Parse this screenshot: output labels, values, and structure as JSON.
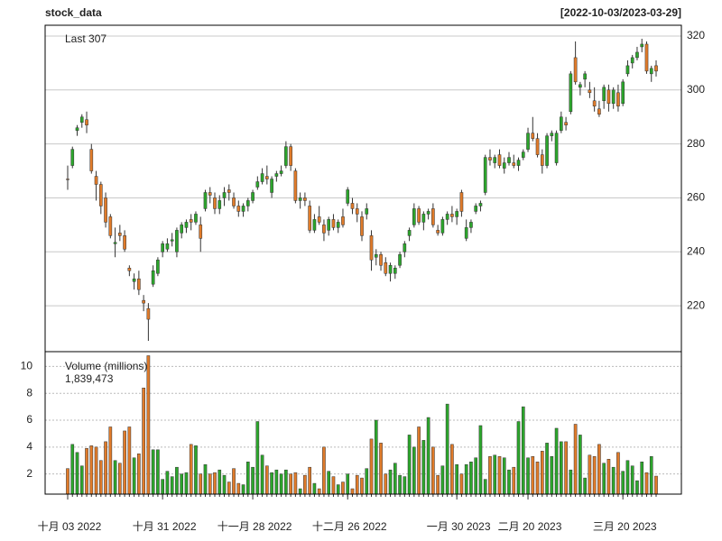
{
  "chart_data": {
    "type": "candlestick",
    "title": "stock_data",
    "range_label": "[2022-10-03/2023-03-29]",
    "last_label": "Last 307",
    "volume_label": "Volume (millions)",
    "volume_last_label": "1,839,473",
    "up_color": "#2ca62c",
    "down_color": "#e07b2a",
    "grid": true,
    "x": [
      "2022-10-03",
      "2022-10-04",
      "2022-10-05",
      "2022-10-06",
      "2022-10-07",
      "2022-10-10",
      "2022-10-11",
      "2022-10-12",
      "2022-10-13",
      "2022-10-14",
      "2022-10-17",
      "2022-10-18",
      "2022-10-19",
      "2022-10-20",
      "2022-10-21",
      "2022-10-24",
      "2022-10-25",
      "2022-10-26",
      "2022-10-27",
      "2022-10-28",
      "2022-10-31",
      "2022-11-01",
      "2022-11-02",
      "2022-11-03",
      "2022-11-04",
      "2022-11-07",
      "2022-11-08",
      "2022-11-09",
      "2022-11-10",
      "2022-11-11",
      "2022-11-14",
      "2022-11-15",
      "2022-11-16",
      "2022-11-17",
      "2022-11-18",
      "2022-11-21",
      "2022-11-22",
      "2022-11-23",
      "2022-11-25",
      "2022-11-28",
      "2022-11-29",
      "2022-11-30",
      "2022-12-01",
      "2022-12-02",
      "2022-12-05",
      "2022-12-06",
      "2022-12-07",
      "2022-12-08",
      "2022-12-09",
      "2022-12-12",
      "2022-12-13",
      "2022-12-14",
      "2022-12-15",
      "2022-12-16",
      "2022-12-19",
      "2022-12-20",
      "2022-12-21",
      "2022-12-22",
      "2022-12-23",
      "2022-12-26",
      "2022-12-27",
      "2022-12-28",
      "2022-12-29",
      "2022-12-30",
      "2023-01-03",
      "2023-01-04",
      "2023-01-05",
      "2023-01-06",
      "2023-01-09",
      "2023-01-10",
      "2023-01-11",
      "2023-01-12",
      "2023-01-13",
      "2023-01-17",
      "2023-01-18",
      "2023-01-19",
      "2023-01-20",
      "2023-01-23",
      "2023-01-24",
      "2023-01-25",
      "2023-01-26",
      "2023-01-27",
      "2023-01-30",
      "2023-01-31",
      "2023-02-01",
      "2023-02-02",
      "2023-02-03",
      "2023-02-06",
      "2023-02-07",
      "2023-02-08",
      "2023-02-09",
      "2023-02-10",
      "2023-02-13",
      "2023-02-14",
      "2023-02-15",
      "2023-02-16",
      "2023-02-17",
      "2023-02-20",
      "2023-02-21",
      "2023-02-22",
      "2023-02-23",
      "2023-02-24",
      "2023-02-27",
      "2023-02-28",
      "2023-03-01",
      "2023-03-02",
      "2023-03-03",
      "2023-03-06",
      "2023-03-07",
      "2023-03-08",
      "2023-03-09",
      "2023-03-10",
      "2023-03-13",
      "2023-03-14",
      "2023-03-15",
      "2023-03-16",
      "2023-03-17",
      "2023-03-20",
      "2023-03-21",
      "2023-03-22",
      "2023-03-23",
      "2023-03-24",
      "2023-03-27",
      "2023-03-28",
      "2023-03-29"
    ],
    "open": [
      267,
      272,
      285,
      288,
      289,
      278,
      268,
      265,
      260,
      253,
      243,
      247,
      246,
      234,
      229,
      230,
      222,
      219,
      228,
      232,
      240,
      241,
      244,
      240,
      247,
      249,
      252,
      251,
      250,
      256,
      262,
      260,
      256,
      260,
      263,
      260,
      257,
      255,
      257,
      259,
      264,
      266,
      268,
      262,
      268,
      269,
      272,
      279,
      270,
      259,
      260,
      257,
      248,
      253,
      250,
      248,
      252,
      249,
      253,
      258,
      258,
      256,
      253,
      254,
      246,
      238,
      239,
      236,
      232,
      232,
      235,
      240,
      246,
      250,
      256,
      251,
      254,
      256,
      248,
      247,
      252,
      254,
      253,
      262,
      245,
      249,
      255,
      257,
      262,
      275,
      273,
      276,
      271,
      273,
      273,
      272,
      275,
      278,
      284,
      282,
      276,
      272,
      283,
      273,
      285,
      288,
      292,
      312,
      301,
      304,
      300,
      296,
      293,
      296,
      300,
      295,
      299,
      295,
      306,
      310,
      312,
      316,
      317,
      306,
      309
    ],
    "high": [
      272,
      279,
      287,
      291,
      292,
      280,
      270,
      266,
      262,
      254,
      249,
      250,
      248,
      235,
      232,
      233,
      224,
      221,
      235,
      238,
      244,
      245,
      247,
      249,
      251,
      252,
      254,
      255,
      253,
      263,
      264,
      262,
      261,
      264,
      265,
      262,
      259,
      258,
      260,
      263,
      268,
      271,
      272,
      268,
      270,
      272,
      281,
      280,
      271,
      262,
      262,
      259,
      254,
      257,
      252,
      253,
      254,
      252,
      256,
      264,
      260,
      258,
      255,
      258,
      248,
      241,
      240,
      238,
      236,
      235,
      240,
      244,
      249,
      258,
      257,
      255,
      256,
      258,
      250,
      253,
      255,
      257,
      256,
      263,
      252,
      252,
      258,
      259,
      276,
      278,
      276,
      278,
      275,
      277,
      276,
      275,
      278,
      286,
      290,
      284,
      278,
      284,
      285,
      285,
      292,
      290,
      307,
      318,
      303,
      307,
      303,
      301,
      296,
      302,
      302,
      301,
      302,
      304,
      311,
      313,
      316,
      319,
      318,
      309,
      311
    ],
    "low": [
      263,
      271,
      283,
      286,
      284,
      269,
      259,
      254,
      249,
      245,
      238,
      244,
      240,
      231,
      226,
      224,
      218,
      207,
      227,
      231,
      238,
      240,
      242,
      238,
      245,
      247,
      248,
      250,
      240,
      255,
      258,
      254,
      254,
      257,
      259,
      256,
      253,
      253,
      255,
      258,
      263,
      265,
      265,
      260,
      266,
      268,
      271,
      270,
      258,
      256,
      257,
      247,
      247,
      250,
      244,
      246,
      248,
      247,
      249,
      257,
      254,
      251,
      244,
      252,
      233,
      235,
      233,
      231,
      229,
      230,
      234,
      238,
      244,
      249,
      250,
      248,
      252,
      249,
      246,
      246,
      250,
      251,
      250,
      253,
      244,
      247,
      254,
      255,
      261,
      272,
      271,
      271,
      269,
      272,
      271,
      270,
      274,
      277,
      281,
      275,
      269,
      271,
      281,
      272,
      284,
      285,
      291,
      302,
      298,
      301,
      297,
      292,
      290,
      293,
      292,
      293,
      292,
      294,
      305,
      308,
      311,
      314,
      306,
      303,
      305
    ],
    "close": [
      266.8,
      278,
      286,
      290,
      287,
      270,
      265,
      257,
      251,
      246,
      243.5,
      246,
      241,
      233,
      230,
      226,
      221,
      215,
      233,
      237,
      243,
      243,
      244.5,
      248,
      250,
      251,
      251,
      254,
      245,
      262,
      261,
      256,
      259,
      262,
      262,
      257,
      255,
      257,
      259,
      262,
      266,
      269,
      267,
      267,
      269,
      270,
      279,
      272,
      259,
      260,
      259,
      248,
      252,
      251,
      247,
      252,
      249,
      251,
      250,
      263,
      256,
      254,
      246,
      256,
      237,
      239,
      235,
      232,
      235,
      234,
      239,
      243,
      248,
      256,
      251,
      254,
      255,
      250,
      247,
      252,
      254,
      253,
      255,
      255,
      249,
      251,
      257,
      258,
      275,
      274,
      275,
      272,
      273,
      275,
      272,
      274,
      277,
      284,
      282,
      276,
      272,
      283,
      284,
      284,
      290,
      287,
      306,
      303,
      302,
      306,
      299,
      294,
      291,
      301,
      295,
      300,
      294,
      303,
      309,
      312,
      314,
      317,
      307,
      308,
      307
    ],
    "volume": [
      2.4,
      4.2,
      3.6,
      2.6,
      3.9,
      4.1,
      4.0,
      3.0,
      4.4,
      5.5,
      3.0,
      2.8,
      5.2,
      5.5,
      3.2,
      3.5,
      8.4,
      10.8,
      3.8,
      3.8,
      1.6,
      2.2,
      1.8,
      2.5,
      2.0,
      2.1,
      4.2,
      4.1,
      2.0,
      2.7,
      2.0,
      2.1,
      2.3,
      1.9,
      1.4,
      2.4,
      1.3,
      1.2,
      2.9,
      2.5,
      5.9,
      3.4,
      2.6,
      2.1,
      2.3,
      2.0,
      2.3,
      2.0,
      2.1,
      0.9,
      1.9,
      2.5,
      1.3,
      0.9,
      4.0,
      2.2,
      1.8,
      1.2,
      1.4,
      2.0,
      0.9,
      1.9,
      1.7,
      2.4,
      4.6,
      6.0,
      4.3,
      2.0,
      2.3,
      2.8,
      1.9,
      1.8,
      4.9,
      4.0,
      5.5,
      4.5,
      6.2,
      4.0,
      1.9,
      2.6,
      7.2,
      4.2,
      2.7,
      2.0,
      2.7,
      2.9,
      3.2,
      5.6,
      1.6,
      3.3,
      3.4,
      3.3,
      3.2,
      2.3,
      2.5,
      5.9,
      7.0,
      3.2,
      3.3,
      2.9,
      3.7,
      4.3,
      3.3,
      5.4,
      4.4,
      4.4,
      2.3,
      5.7,
      4.9,
      1.7,
      3.4,
      3.3,
      4.2,
      2.8,
      3.1,
      2.5,
      3.6,
      2.2,
      3.0,
      2.6,
      1.5,
      2.9,
      2.1,
      3.3,
      1.839473
    ],
    "ylim": [
      203,
      324
    ],
    "yticks": [
      220,
      240,
      260,
      280,
      300,
      320
    ],
    "y2lim": [
      0.5,
      11.1
    ],
    "y2ticks": [
      2,
      4,
      6,
      8,
      10
    ],
    "xticks": [
      {
        "value": "2022-10-03",
        "label": "十月 03 2022"
      },
      {
        "value": "2022-10-31",
        "label": "十月 31 2022"
      },
      {
        "value": "2022-11-28",
        "label": "十一月 28 2022"
      },
      {
        "value": "2022-12-26",
        "label": "十二月 26 2022"
      },
      {
        "value": "2023-01-30",
        "label": "一月 30 2023"
      },
      {
        "value": "2023-02-20",
        "label": "二月 20 2023"
      },
      {
        "value": "2023-03-20",
        "label": "三月 20 2023"
      }
    ]
  }
}
